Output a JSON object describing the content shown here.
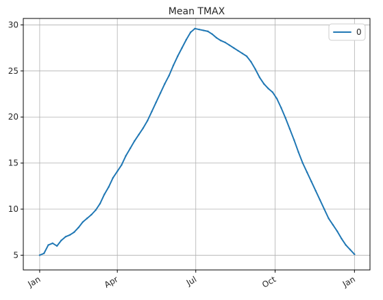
{
  "chart_data": {
    "type": "line",
    "title": "Mean   TMAX",
    "xlabel": "",
    "ylabel": "",
    "x_ticks": [
      {
        "label": "Jan",
        "day": 0
      },
      {
        "label": "Apr",
        "day": 90
      },
      {
        "label": "Jul",
        "day": 181
      },
      {
        "label": "Oct",
        "day": 273
      },
      {
        "label": "Jan",
        "day": 365
      }
    ],
    "y_ticks": [
      5,
      10,
      15,
      20,
      25,
      30
    ],
    "xlim": [
      -19,
      383
    ],
    "ylim": [
      3.4,
      30.7
    ],
    "grid": true,
    "legend": {
      "position": "top-right"
    },
    "series": [
      {
        "name": "0",
        "color": "#1f77b4",
        "points": [
          [
            0,
            5.0
          ],
          [
            5,
            5.2
          ],
          [
            10,
            6.1
          ],
          [
            15,
            6.3
          ],
          [
            20,
            6.0
          ],
          [
            25,
            6.6
          ],
          [
            30,
            7.0
          ],
          [
            35,
            7.2
          ],
          [
            40,
            7.5
          ],
          [
            45,
            8.0
          ],
          [
            50,
            8.6
          ],
          [
            55,
            9.0
          ],
          [
            60,
            9.4
          ],
          [
            65,
            9.9
          ],
          [
            70,
            10.6
          ],
          [
            75,
            11.6
          ],
          [
            80,
            12.4
          ],
          [
            85,
            13.4
          ],
          [
            90,
            14.1
          ],
          [
            95,
            14.8
          ],
          [
            100,
            15.8
          ],
          [
            105,
            16.6
          ],
          [
            110,
            17.4
          ],
          [
            115,
            18.1
          ],
          [
            120,
            18.8
          ],
          [
            125,
            19.6
          ],
          [
            130,
            20.6
          ],
          [
            135,
            21.6
          ],
          [
            140,
            22.6
          ],
          [
            145,
            23.6
          ],
          [
            150,
            24.5
          ],
          [
            155,
            25.6
          ],
          [
            160,
            26.6
          ],
          [
            165,
            27.5
          ],
          [
            170,
            28.4
          ],
          [
            175,
            29.2
          ],
          [
            180,
            29.6
          ],
          [
            185,
            29.5
          ],
          [
            190,
            29.4
          ],
          [
            195,
            29.3
          ],
          [
            200,
            29.0
          ],
          [
            205,
            28.6
          ],
          [
            210,
            28.3
          ],
          [
            215,
            28.1
          ],
          [
            220,
            27.8
          ],
          [
            225,
            27.5
          ],
          [
            230,
            27.2
          ],
          [
            235,
            26.9
          ],
          [
            240,
            26.6
          ],
          [
            245,
            26.0
          ],
          [
            250,
            25.2
          ],
          [
            255,
            24.3
          ],
          [
            260,
            23.6
          ],
          [
            265,
            23.1
          ],
          [
            270,
            22.7
          ],
          [
            275,
            22.0
          ],
          [
            280,
            21.0
          ],
          [
            285,
            19.9
          ],
          [
            290,
            18.7
          ],
          [
            295,
            17.5
          ],
          [
            300,
            16.2
          ],
          [
            305,
            15.0
          ],
          [
            310,
            14.0
          ],
          [
            315,
            13.0
          ],
          [
            320,
            12.0
          ],
          [
            325,
            11.0
          ],
          [
            330,
            10.0
          ],
          [
            335,
            9.0
          ],
          [
            340,
            8.3
          ],
          [
            345,
            7.6
          ],
          [
            350,
            6.8
          ],
          [
            355,
            6.1
          ],
          [
            360,
            5.6
          ],
          [
            365,
            5.1
          ]
        ]
      }
    ]
  }
}
